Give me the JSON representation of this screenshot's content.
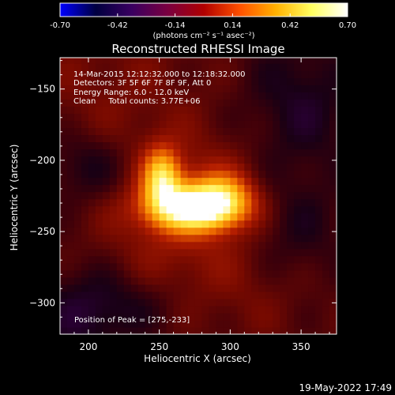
{
  "colorbar": {
    "ticks": [
      "-0.70",
      "-0.42",
      "-0.14",
      "0.14",
      "0.42",
      "0.70"
    ],
    "unit_label": "(photons cm⁻² s⁻¹ asec⁻²)",
    "colormap": [
      "#0000ff",
      "#000040",
      "#3a0060",
      "#7a0040",
      "#b00000",
      "#ff5000",
      "#ffb000",
      "#ffff60",
      "#ffffff"
    ]
  },
  "chart_data": {
    "type": "heatmap",
    "title": "Reconstructed RHESSI Image",
    "xlabel": "Heliocentric X (arcsec)",
    "ylabel": "Heliocentric Y (arcsec)",
    "xlim": [
      180,
      375
    ],
    "ylim": [
      -322,
      -128
    ],
    "x_ticks": [
      200,
      250,
      300,
      350
    ],
    "y_ticks": [
      -150,
      -200,
      -250,
      -300
    ],
    "peak": {
      "x": 275,
      "y": -233
    },
    "annotations": [
      "14-Mar-2015 12:12:32.000 to 12:18:32.000",
      "Detectors: 3F 5F 6F 7F 8F 9F, Att 0",
      "Energy Range: 6.0 - 12.0 keV",
      "Clean     Total counts: 3.77E+06"
    ],
    "peak_label": "Position of Peak = [275,-233]"
  },
  "footer": {
    "date": "19-May-2022 17:49"
  }
}
